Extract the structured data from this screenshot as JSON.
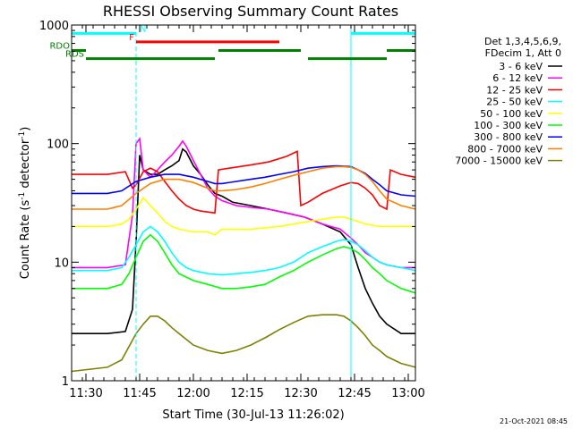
{
  "chart_data": {
    "type": "line",
    "title": "RHESSI Observing Summary Count Rates",
    "xlabel": "Start Time (30-Jul-13 11:26:02)",
    "ylabel": "Count Rate (s",
    "ylabel_sup": "-1",
    "ylabel_tail": " detector",
    "ylabel_end": ")",
    "y_scale": "log",
    "xlim": [
      0,
      96
    ],
    "ylim": [
      1,
      1000
    ],
    "x_ticks": [
      {
        "t": 4,
        "label": "11:30"
      },
      {
        "t": 19,
        "label": "11:45"
      },
      {
        "t": 34,
        "label": "12:00"
      },
      {
        "t": 49,
        "label": "12:15"
      },
      {
        "t": 64,
        "label": "12:30"
      },
      {
        "t": 79,
        "label": "12:45"
      },
      {
        "t": 94,
        "label": "13:00"
      }
    ],
    "y_ticks": [
      {
        "v": 1,
        "label": "1"
      },
      {
        "v": 10,
        "label": "10"
      },
      {
        "v": 100,
        "label": "100"
      },
      {
        "v": 1000,
        "label": "1000"
      }
    ],
    "legend_header": [
      "Det 1,3,4,5,6,9,",
      "FDecim 1, Att 0"
    ],
    "legend_position": "right",
    "series": [
      {
        "name": "3 - 6 keV",
        "color": "#000000",
        "points": [
          [
            0,
            2.5
          ],
          [
            10,
            2.5
          ],
          [
            15,
            2.6
          ],
          [
            17,
            4
          ],
          [
            18,
            15
          ],
          [
            19,
            80
          ],
          [
            20,
            60
          ],
          [
            22,
            55
          ],
          [
            24,
            55
          ],
          [
            26,
            60
          ],
          [
            28,
            65
          ],
          [
            30,
            72
          ],
          [
            31,
            90
          ],
          [
            32,
            85
          ],
          [
            34,
            65
          ],
          [
            36,
            55
          ],
          [
            38,
            45
          ],
          [
            40,
            38
          ],
          [
            42,
            36
          ],
          [
            45,
            32
          ],
          [
            50,
            30
          ],
          [
            55,
            28
          ],
          [
            60,
            26
          ],
          [
            65,
            24
          ],
          [
            70,
            21
          ],
          [
            75,
            18
          ],
          [
            78,
            14
          ],
          [
            80,
            9
          ],
          [
            82,
            6
          ],
          [
            84,
            4.5
          ],
          [
            86,
            3.5
          ],
          [
            88,
            3
          ],
          [
            92,
            2.5
          ],
          [
            96,
            2.5
          ]
        ]
      },
      {
        "name": "6 - 12 keV",
        "color": "#ff00ff",
        "points": [
          [
            0,
            9
          ],
          [
            10,
            9
          ],
          [
            15,
            9.5
          ],
          [
            17,
            25
          ],
          [
            18,
            100
          ],
          [
            19,
            110
          ],
          [
            20,
            60
          ],
          [
            22,
            52
          ],
          [
            24,
            60
          ],
          [
            26,
            70
          ],
          [
            28,
            80
          ],
          [
            30,
            95
          ],
          [
            31,
            105
          ],
          [
            32,
            95
          ],
          [
            34,
            72
          ],
          [
            36,
            55
          ],
          [
            38,
            42
          ],
          [
            40,
            36
          ],
          [
            42,
            33
          ],
          [
            46,
            30
          ],
          [
            50,
            29
          ],
          [
            55,
            28
          ],
          [
            60,
            26
          ],
          [
            65,
            24
          ],
          [
            70,
            21
          ],
          [
            75,
            19
          ],
          [
            78,
            16
          ],
          [
            80,
            14
          ],
          [
            82,
            12
          ],
          [
            84,
            11
          ],
          [
            86,
            10
          ],
          [
            88,
            9.5
          ],
          [
            92,
            9
          ],
          [
            96,
            9
          ]
        ]
      },
      {
        "name": "12 - 25 keV",
        "color": "#ff0000",
        "points": [
          [
            0,
            55
          ],
          [
            10,
            55
          ],
          [
            15,
            58
          ],
          [
            17,
            42
          ],
          [
            18,
            45
          ],
          [
            20,
            58
          ],
          [
            22,
            62
          ],
          [
            24,
            58
          ],
          [
            26,
            48
          ],
          [
            28,
            40
          ],
          [
            30,
            34
          ],
          [
            32,
            30
          ],
          [
            34,
            28
          ],
          [
            36,
            27
          ],
          [
            40,
            26
          ],
          [
            41,
            60
          ],
          [
            44,
            62
          ],
          [
            50,
            66
          ],
          [
            55,
            70
          ],
          [
            60,
            78
          ],
          [
            63,
            86
          ],
          [
            64,
            30
          ],
          [
            66,
            32
          ],
          [
            70,
            38
          ],
          [
            75,
            44
          ],
          [
            78,
            47
          ],
          [
            80,
            46
          ],
          [
            82,
            42
          ],
          [
            84,
            37
          ],
          [
            86,
            30
          ],
          [
            88,
            28
          ],
          [
            89,
            60
          ],
          [
            92,
            55
          ],
          [
            96,
            52
          ]
        ]
      },
      {
        "name": "25 - 50 keV",
        "color": "#00ffff",
        "points": [
          [
            0,
            8.5
          ],
          [
            10,
            8.5
          ],
          [
            14,
            9
          ],
          [
            16,
            11
          ],
          [
            18,
            14
          ],
          [
            20,
            18
          ],
          [
            22,
            20
          ],
          [
            24,
            18
          ],
          [
            26,
            15
          ],
          [
            28,
            12
          ],
          [
            30,
            10
          ],
          [
            32,
            9
          ],
          [
            34,
            8.5
          ],
          [
            38,
            8
          ],
          [
            42,
            7.8
          ],
          [
            46,
            8
          ],
          [
            50,
            8.2
          ],
          [
            54,
            8.5
          ],
          [
            58,
            9
          ],
          [
            62,
            10
          ],
          [
            66,
            12
          ],
          [
            70,
            13.5
          ],
          [
            74,
            15
          ],
          [
            76,
            15.5
          ],
          [
            78,
            15
          ],
          [
            80,
            14
          ],
          [
            82,
            12.5
          ],
          [
            84,
            11
          ],
          [
            86,
            10
          ],
          [
            88,
            9.5
          ],
          [
            92,
            9
          ],
          [
            96,
            8.5
          ]
        ]
      },
      {
        "name": "50 - 100 keV",
        "color": "#ffff00",
        "points": [
          [
            0,
            20
          ],
          [
            10,
            20
          ],
          [
            14,
            21
          ],
          [
            16,
            23
          ],
          [
            18,
            28
          ],
          [
            20,
            35
          ],
          [
            22,
            30
          ],
          [
            24,
            26
          ],
          [
            26,
            22
          ],
          [
            28,
            20
          ],
          [
            30,
            19
          ],
          [
            34,
            18
          ],
          [
            38,
            18
          ],
          [
            40,
            17
          ],
          [
            42,
            19
          ],
          [
            46,
            19
          ],
          [
            50,
            19
          ],
          [
            54,
            19.5
          ],
          [
            58,
            20
          ],
          [
            62,
            21
          ],
          [
            66,
            22
          ],
          [
            70,
            23
          ],
          [
            74,
            24
          ],
          [
            76,
            24
          ],
          [
            78,
            23
          ],
          [
            80,
            22
          ],
          [
            82,
            21
          ],
          [
            84,
            20.5
          ],
          [
            86,
            20
          ],
          [
            92,
            20
          ],
          [
            96,
            20
          ]
        ]
      },
      {
        "name": "100 - 300 keV",
        "color": "#00ff00",
        "points": [
          [
            0,
            6
          ],
          [
            10,
            6
          ],
          [
            14,
            6.5
          ],
          [
            16,
            8
          ],
          [
            18,
            11
          ],
          [
            20,
            15
          ],
          [
            22,
            17
          ],
          [
            24,
            15
          ],
          [
            26,
            12
          ],
          [
            28,
            9.5
          ],
          [
            30,
            8
          ],
          [
            34,
            7
          ],
          [
            38,
            6.5
          ],
          [
            42,
            6
          ],
          [
            46,
            6
          ],
          [
            50,
            6.2
          ],
          [
            54,
            6.5
          ],
          [
            58,
            7.5
          ],
          [
            62,
            8.5
          ],
          [
            66,
            10
          ],
          [
            70,
            11.5
          ],
          [
            74,
            13
          ],
          [
            76,
            13.5
          ],
          [
            78,
            13
          ],
          [
            80,
            12
          ],
          [
            82,
            10.5
          ],
          [
            84,
            9
          ],
          [
            86,
            8
          ],
          [
            88,
            7
          ],
          [
            92,
            6
          ],
          [
            96,
            5.5
          ]
        ]
      },
      {
        "name": "300 - 800 keV",
        "color": "#0000ff",
        "points": [
          [
            0,
            38
          ],
          [
            10,
            38
          ],
          [
            14,
            40
          ],
          [
            18,
            48
          ],
          [
            22,
            52
          ],
          [
            26,
            55
          ],
          [
            30,
            55
          ],
          [
            34,
            52
          ],
          [
            38,
            48
          ],
          [
            40,
            46
          ],
          [
            42,
            46
          ],
          [
            46,
            48
          ],
          [
            50,
            50
          ],
          [
            54,
            52
          ],
          [
            58,
            55
          ],
          [
            62,
            58
          ],
          [
            66,
            62
          ],
          [
            70,
            64
          ],
          [
            74,
            65
          ],
          [
            78,
            64
          ],
          [
            80,
            60
          ],
          [
            82,
            56
          ],
          [
            84,
            50
          ],
          [
            86,
            45
          ],
          [
            88,
            40
          ],
          [
            92,
            37
          ],
          [
            96,
            36
          ]
        ]
      },
      {
        "name": "800 - 7000 keV",
        "color": "#ff8000",
        "points": [
          [
            0,
            28
          ],
          [
            10,
            28
          ],
          [
            14,
            30
          ],
          [
            18,
            38
          ],
          [
            22,
            46
          ],
          [
            26,
            50
          ],
          [
            30,
            50
          ],
          [
            34,
            47
          ],
          [
            38,
            42
          ],
          [
            40,
            40
          ],
          [
            42,
            40
          ],
          [
            46,
            41
          ],
          [
            50,
            43
          ],
          [
            54,
            46
          ],
          [
            58,
            50
          ],
          [
            62,
            54
          ],
          [
            66,
            58
          ],
          [
            70,
            62
          ],
          [
            74,
            64
          ],
          [
            76,
            64
          ],
          [
            78,
            63
          ],
          [
            80,
            60
          ],
          [
            82,
            55
          ],
          [
            84,
            48
          ],
          [
            86,
            40
          ],
          [
            88,
            34
          ],
          [
            92,
            30
          ],
          [
            96,
            28
          ]
        ]
      },
      {
        "name": "7000 - 15000 keV",
        "color": "#808000",
        "points": [
          [
            0,
            1.2
          ],
          [
            10,
            1.3
          ],
          [
            14,
            1.5
          ],
          [
            18,
            2.5
          ],
          [
            20,
            3
          ],
          [
            22,
            3.5
          ],
          [
            24,
            3.5
          ],
          [
            26,
            3.2
          ],
          [
            28,
            2.8
          ],
          [
            30,
            2.5
          ],
          [
            34,
            2
          ],
          [
            38,
            1.8
          ],
          [
            42,
            1.7
          ],
          [
            46,
            1.8
          ],
          [
            50,
            2
          ],
          [
            54,
            2.3
          ],
          [
            58,
            2.7
          ],
          [
            62,
            3.1
          ],
          [
            66,
            3.5
          ],
          [
            70,
            3.6
          ],
          [
            74,
            3.6
          ],
          [
            76,
            3.5
          ],
          [
            78,
            3.2
          ],
          [
            80,
            2.8
          ],
          [
            82,
            2.4
          ],
          [
            84,
            2
          ],
          [
            86,
            1.8
          ],
          [
            88,
            1.6
          ],
          [
            92,
            1.4
          ],
          [
            96,
            1.3
          ]
        ]
      }
    ],
    "vlines": [
      {
        "t": 18,
        "style": "dashed",
        "color": "#00ffff"
      },
      {
        "t": 78,
        "style": "solid",
        "color": "#00ffff"
      },
      {
        "t": 96,
        "style": "dashed",
        "color": "#00ffff"
      }
    ],
    "flag_bars": [
      {
        "label": "N",
        "color": "#00ffff",
        "v": 850,
        "segments": [
          [
            0,
            18
          ],
          [
            78,
            96
          ]
        ]
      },
      {
        "label": "F",
        "color": "#ff0000",
        "v": 720,
        "segments": [
          [
            18,
            58
          ]
        ]
      },
      {
        "label": "RDO",
        "color": "#008000",
        "v": 610,
        "segments": [
          [
            0,
            4
          ],
          [
            41,
            64
          ],
          [
            88,
            96
          ]
        ]
      },
      {
        "label": "RDS",
        "color": "#008000",
        "v": 520,
        "segments": [
          [
            4,
            40
          ],
          [
            66,
            88
          ]
        ]
      }
    ],
    "footer_date": "21-Oct-2021 08:45"
  }
}
